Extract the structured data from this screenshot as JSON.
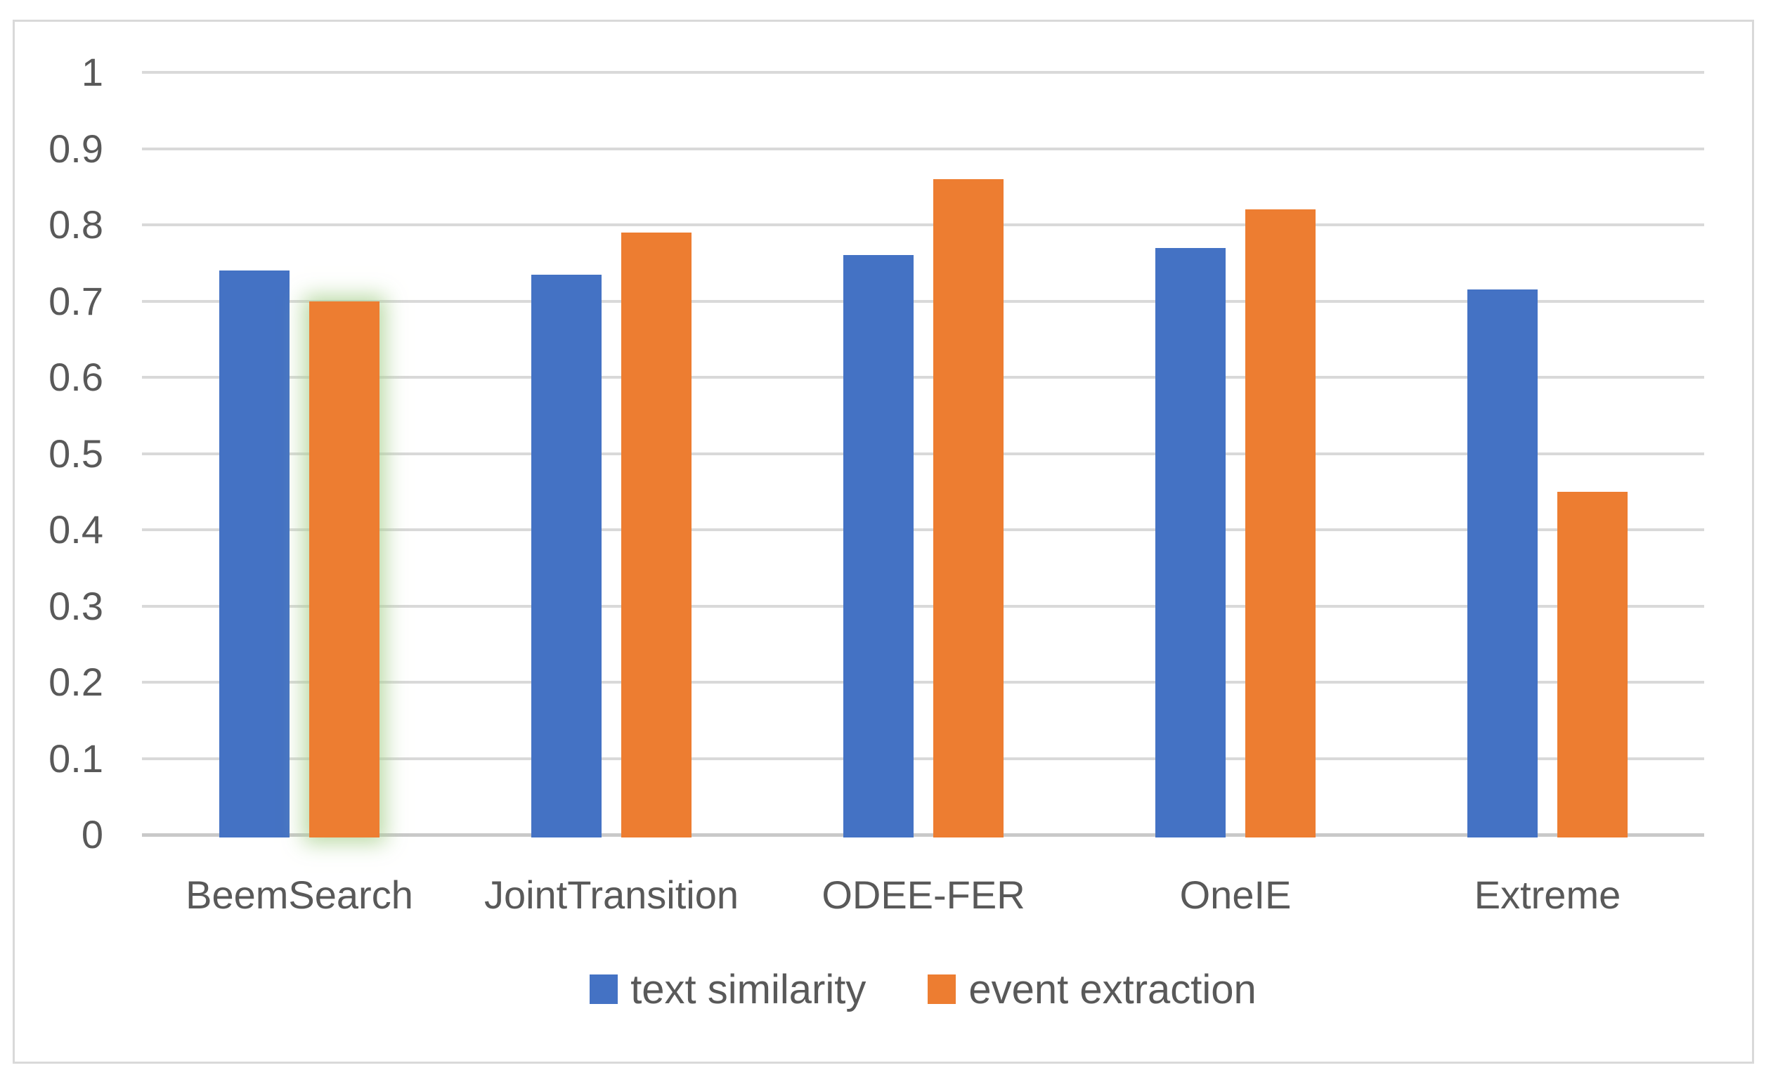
{
  "chart_data": {
    "type": "bar",
    "title": "",
    "categories": [
      "BeemSearch",
      "JointTransition",
      "ODEE-FER",
      "OneIE",
      "Extreme"
    ],
    "series": [
      {
        "name": "text similarity",
        "color": "#4472C4",
        "values": [
          0.74,
          0.735,
          0.76,
          0.77,
          0.715
        ]
      },
      {
        "name": "event extraction",
        "color": "#ED7D31",
        "values": [
          0.7,
          0.79,
          0.86,
          0.82,
          0.45
        ]
      }
    ],
    "y_axis": {
      "min": 0,
      "max": 1,
      "tick_step": 0.1,
      "tick_labels": [
        "0",
        "0.1",
        "0.2",
        "0.3",
        "0.4",
        "0.5",
        "0.6",
        "0.7",
        "0.8",
        "0.9",
        "1"
      ]
    },
    "grid": true,
    "legend_position": "bottom",
    "highlight": {
      "series_index": 1,
      "category_index": 0,
      "glow_color": "#A9D18E"
    }
  },
  "legend": {
    "items": [
      {
        "label": "text similarity",
        "color": "#4472C4"
      },
      {
        "label": "event extraction",
        "color": "#ED7D31"
      }
    ]
  },
  "colors": {
    "bar_blue": "#4472C4",
    "bar_orange": "#ED7D31",
    "gridline": "#D9D9D9",
    "axis_line": "#C9C9C9",
    "frame_border": "#D9D9D9",
    "text": "#595959",
    "background": "#FFFFFF",
    "highlight_glow": "#A9D18E"
  }
}
